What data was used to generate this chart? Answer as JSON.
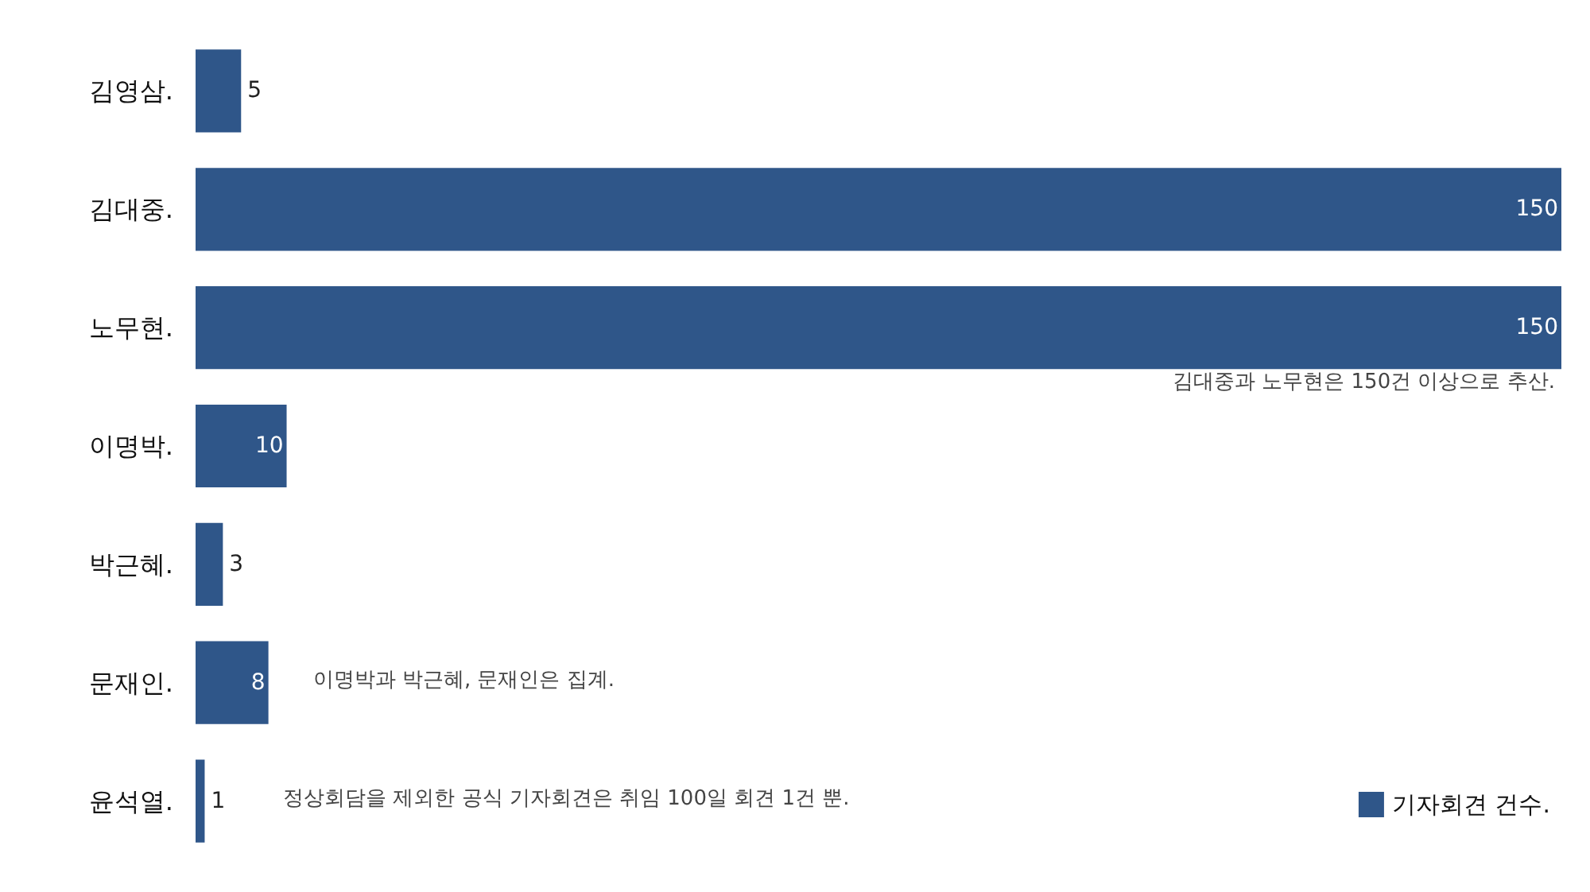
{
  "chart_data": {
    "type": "bar",
    "orientation": "horizontal",
    "categories": [
      "김영삼.",
      "김대중.",
      "노무현.",
      "이명박.",
      "박근혜.",
      "문재인.",
      "윤석열."
    ],
    "series": [
      {
        "name": "기자회견 건수.",
        "color": "#2f5689",
        "values": [
          5,
          150,
          150,
          10,
          3,
          8,
          1
        ]
      }
    ],
    "data_labels": true,
    "legend": "bottom right",
    "annotations": [
      "김대중과 노무현은 150건 이상으로 추산.",
      "이명박과 박근혜, 문재인은 집계.",
      "정상회담을 제외한 공식 기자회견은 취임 100일 회견 1건 뿐."
    ]
  }
}
